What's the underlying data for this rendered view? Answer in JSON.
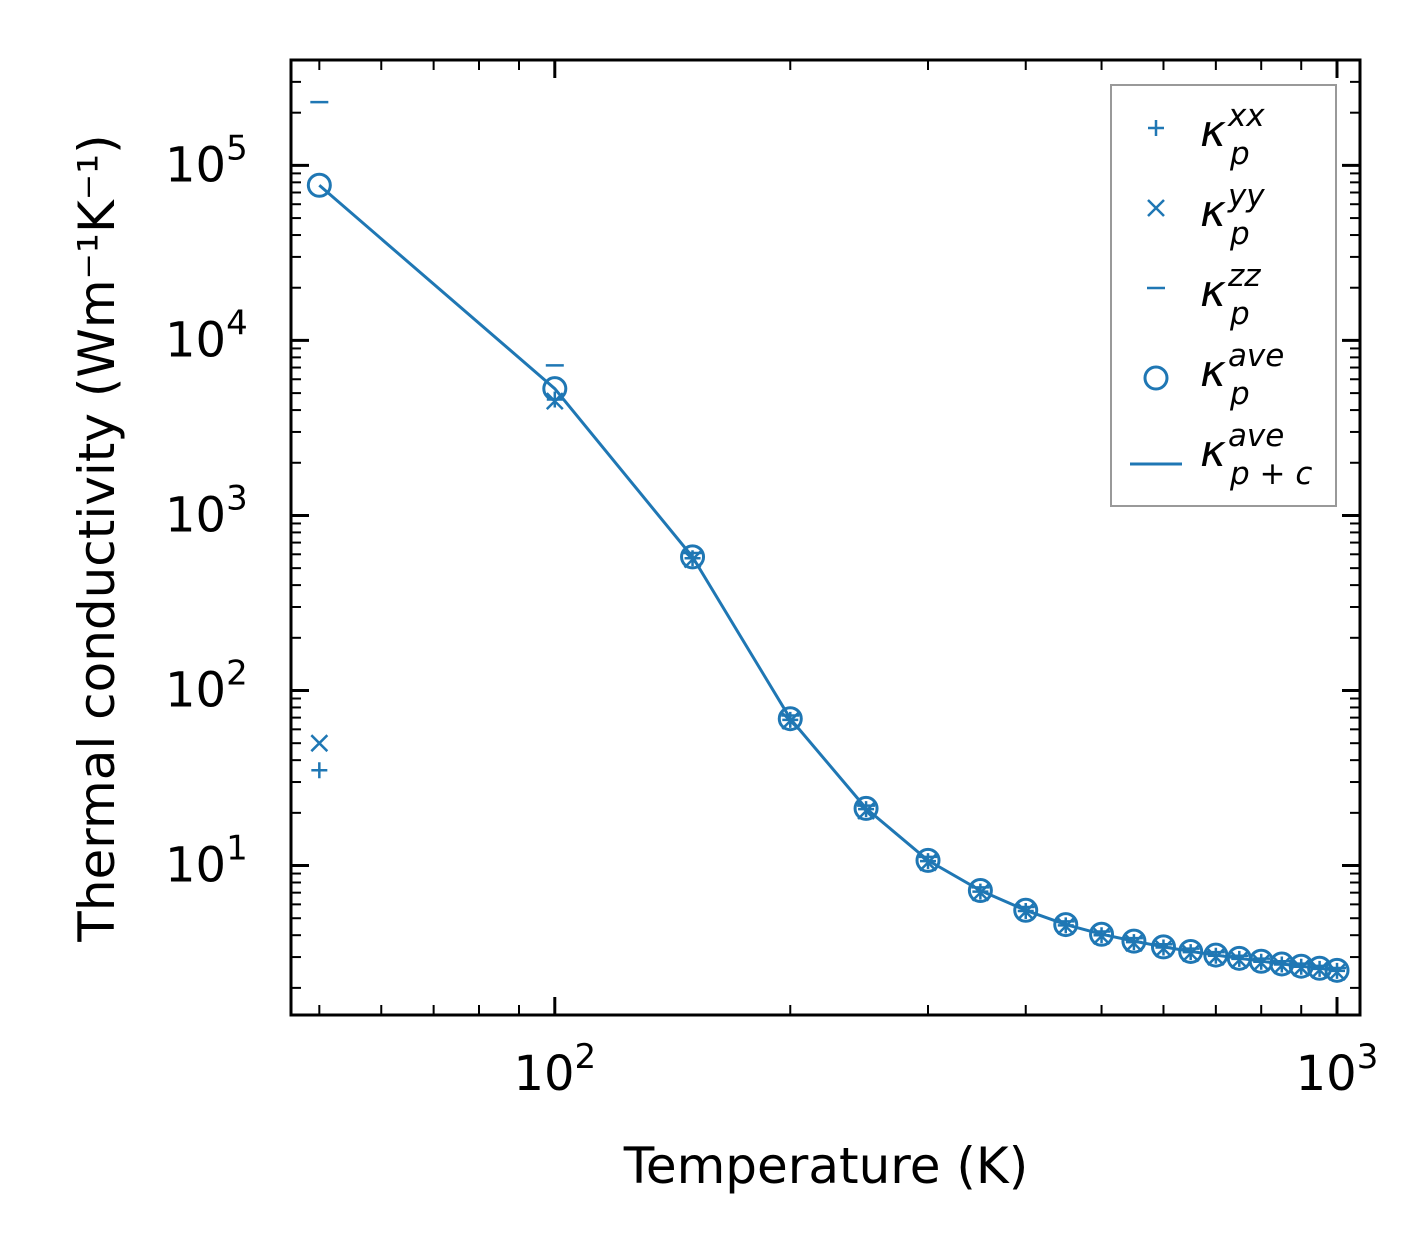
{
  "colors": {
    "series": "#1f77b4",
    "axis": "#000000",
    "legend_border": "#999999"
  },
  "chart_data": {
    "type": "scatter",
    "xscale": "log",
    "yscale": "log",
    "xlim": [
      46,
      1070
    ],
    "ylim": [
      1.4,
      400000
    ],
    "xlabel": "Temperature (K)",
    "ylabel": "Thermal conductivity (Wm⁻¹K⁻¹)",
    "xticks": [
      {
        "value": 100,
        "base": "10",
        "exp": "2"
      },
      {
        "value": 1000,
        "base": "10",
        "exp": "3"
      }
    ],
    "yticks": [
      {
        "value": 10,
        "base": "10",
        "exp": "1"
      },
      {
        "value": 100,
        "base": "10",
        "exp": "2"
      },
      {
        "value": 1000,
        "base": "10",
        "exp": "3"
      },
      {
        "value": 10000,
        "base": "10",
        "exp": "4"
      },
      {
        "value": 100000,
        "base": "10",
        "exp": "5"
      }
    ],
    "legend_position": "top-right",
    "series": [
      {
        "name": "κ_p^xx",
        "sym": "κ",
        "sub": "p",
        "sup": "xx",
        "marker": "plus",
        "x": [
          50,
          100,
          150,
          200,
          250,
          300,
          350,
          400,
          450,
          500,
          550,
          600,
          650,
          700,
          750,
          800,
          850,
          900,
          950,
          1000
        ],
        "y": [
          35,
          4600,
          570,
          68,
          21,
          10.6,
          7.1,
          5.5,
          4.55,
          4.0,
          3.65,
          3.4,
          3.2,
          3.05,
          2.93,
          2.82,
          2.72,
          2.64,
          2.57,
          2.5
        ]
      },
      {
        "name": "κ_p^yy",
        "sym": "κ",
        "sub": "p",
        "sup": "yy",
        "marker": "x",
        "x": [
          50,
          100,
          150,
          200,
          250,
          300,
          350,
          400,
          450,
          500,
          550,
          600,
          650,
          700,
          750,
          800,
          850,
          900,
          950,
          1000
        ],
        "y": [
          50,
          4500,
          560,
          67,
          20.5,
          10.4,
          7.0,
          5.45,
          4.5,
          3.95,
          3.6,
          3.35,
          3.15,
          3.0,
          2.88,
          2.78,
          2.68,
          2.6,
          2.53,
          2.46
        ]
      },
      {
        "name": "κ_p^zz",
        "sym": "κ",
        "sub": "p",
        "sup": "zz",
        "marker": "hline",
        "x": [
          50,
          100,
          150,
          200,
          250,
          300,
          350,
          400,
          450,
          500,
          550,
          600,
          650,
          700,
          750,
          800,
          850,
          900,
          950,
          1000
        ],
        "y": [
          230000,
          7200,
          610,
          72,
          22,
          11.2,
          7.5,
          5.8,
          4.8,
          4.2,
          3.85,
          3.55,
          3.35,
          3.2,
          3.05,
          2.94,
          2.84,
          2.75,
          2.67,
          2.6
        ]
      },
      {
        "name": "κ_p^ave",
        "sym": "κ",
        "sub": "p",
        "sup": "ave",
        "marker": "circle",
        "x": [
          50,
          100,
          150,
          200,
          250,
          300,
          350,
          400,
          450,
          500,
          550,
          600,
          650,
          700,
          750,
          800,
          850,
          900,
          950,
          1000
        ],
        "y": [
          77000,
          5300,
          580,
          69,
          21.2,
          10.7,
          7.2,
          5.55,
          4.6,
          4.05,
          3.7,
          3.43,
          3.23,
          3.08,
          2.95,
          2.84,
          2.74,
          2.66,
          2.59,
          2.52
        ]
      },
      {
        "name": "κ_{p+c}^ave",
        "sym": "κ",
        "sub": "p + c",
        "sup": "ave",
        "marker": "line",
        "x": [
          50,
          100,
          150,
          200,
          250,
          300,
          350,
          400,
          450,
          500,
          550,
          600,
          650,
          700,
          750,
          800,
          850,
          900,
          950,
          1000
        ],
        "y": [
          77000,
          5300,
          580,
          69,
          21.2,
          10.7,
          7.2,
          5.55,
          4.6,
          4.05,
          3.7,
          3.43,
          3.23,
          3.08,
          2.95,
          2.84,
          2.74,
          2.66,
          2.59,
          2.52
        ]
      }
    ]
  }
}
